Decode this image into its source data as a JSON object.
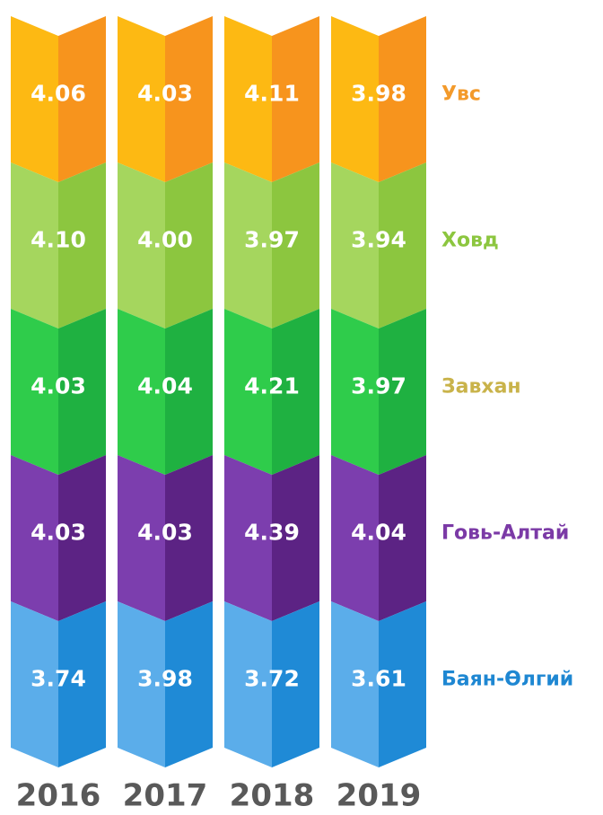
{
  "years": [
    "2016",
    "2017",
    "2018",
    "2019"
  ],
  "rows": [
    {
      "name": "Увс",
      "color": "#f39a2b",
      "light": "#fdb913",
      "dark": "#f7941d",
      "values": [
        "4.06",
        "4.03",
        "4.11",
        "3.98"
      ]
    },
    {
      "name": "Ховд",
      "color": "#8cc63f",
      "light": "#a5d65e",
      "dark": "#8cc63f",
      "values": [
        "4.10",
        "4.00",
        "3.97",
        "3.94"
      ]
    },
    {
      "name": "Завхан",
      "color": "#c9b34a",
      "light": "#2fcc4b",
      "dark": "#1fb141",
      "values": [
        "4.03",
        "4.04",
        "4.21",
        "3.97"
      ]
    },
    {
      "name": "Говь-Алтай",
      "color": "#7b3aa6",
      "light": "#7c3eae",
      "dark": "#5c2384",
      "values": [
        "4.03",
        "4.03",
        "4.39",
        "4.04"
      ]
    },
    {
      "name": "Баян-Өлгий",
      "color": "#1e87d2",
      "light": "#5badea",
      "dark": "#1f8ad6",
      "values": [
        "3.74",
        "3.98",
        "3.72",
        "3.61"
      ]
    }
  ]
}
